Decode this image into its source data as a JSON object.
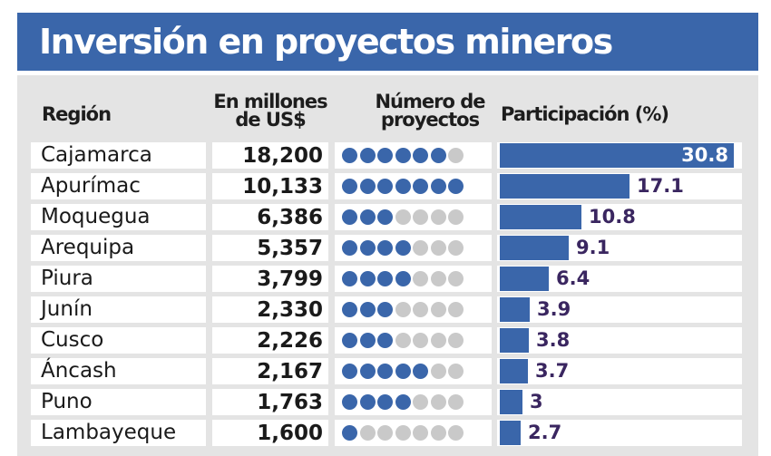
{
  "title": "Inversión en proyectos mineros",
  "headers": {
    "region": "Región",
    "investment": [
      "En millones",
      "de US$"
    ],
    "projects": [
      "Número de",
      "proyectos"
    ],
    "share": "Participación (%)"
  },
  "colors": {
    "accent": "#3a66aa",
    "dot_off": "#c9c9c9",
    "label": "#3a2660"
  },
  "chart_data": {
    "type": "table",
    "title": "Inversión en proyectos mineros",
    "columns": [
      "Región",
      "En millones de US$",
      "Número de proyectos",
      "Participación (%)"
    ],
    "max_dots": 7,
    "rows": [
      {
        "region": "Cajamarca",
        "investment": "18,200",
        "projects": 6,
        "share": 30.8,
        "share_label": "30.8"
      },
      {
        "region": "Apurímac",
        "investment": "10,133",
        "projects": 7,
        "share": 17.1,
        "share_label": "17.1"
      },
      {
        "region": "Moquegua",
        "investment": "6,386",
        "projects": 3,
        "share": 10.8,
        "share_label": "10.8"
      },
      {
        "region": "Arequipa",
        "investment": "5,357",
        "projects": 4,
        "share": 9.1,
        "share_label": "9.1"
      },
      {
        "region": "Piura",
        "investment": "3,799",
        "projects": 4,
        "share": 6.4,
        "share_label": "6.4"
      },
      {
        "region": "Junín",
        "investment": "2,330",
        "projects": 3,
        "share": 3.9,
        "share_label": "3.9"
      },
      {
        "region": "Cusco",
        "investment": "2,226",
        "projects": 3,
        "share": 3.8,
        "share_label": "3.8"
      },
      {
        "region": "Áncash",
        "investment": "2,167",
        "projects": 5,
        "share": 3.7,
        "share_label": "3.7"
      },
      {
        "region": "Puno",
        "investment": "1,763",
        "projects": 4,
        "share": 3,
        "share_label": "3"
      },
      {
        "region": "Lambayeque",
        "investment": "1,600",
        "projects": 1,
        "share": 2.7,
        "share_label": "2.7"
      }
    ]
  }
}
